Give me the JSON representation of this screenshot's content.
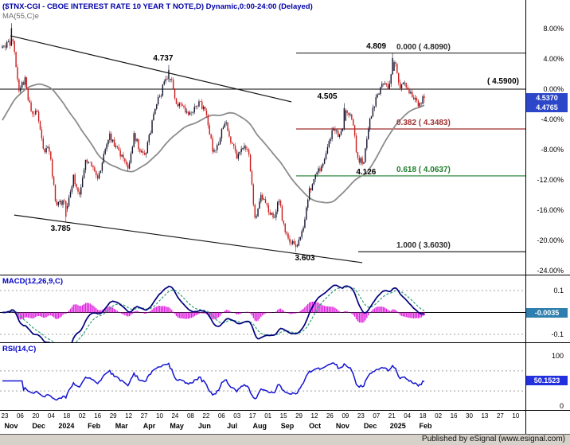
{
  "header": {
    "title": "($TNX-CGI - CBOE INTEREST RATE 10 YEAR T NOTE,D) Dynamic,0:00-24:00 (Delayed)",
    "overlay_label": "MA(55,C)e"
  },
  "panels": {
    "macd_label": "MACD(12,26,9,C)",
    "rsi_label": "RSI(14,C)"
  },
  "boxes": {
    "price": "4.5370",
    "ma": "4.4765",
    "macd": "-0.0035",
    "rsi": "50.1523",
    "price_color": "#2b46c8",
    "ma_color": "#2b46c8",
    "macd_color": "#2e7fae",
    "rsi_color": "#2330dd"
  },
  "level_line": {
    "label": "( 4.5900)",
    "price": 4.59
  },
  "fib": [
    {
      "ratio": "0.000",
      "price": 4.809,
      "label": "0.000 ( 4.8090)",
      "color": "#2a2a2a",
      "x_start": 372
    },
    {
      "ratio": "0.382",
      "price": 4.3483,
      "label": "0.382 ( 4.3483)",
      "color": "#9e2f2f",
      "x_start": 372
    },
    {
      "ratio": "0.618",
      "price": 4.0637,
      "label": "0.618 ( 4.0637)",
      "color": "#1e7d2c",
      "x_start": 372
    },
    {
      "ratio": "1.000",
      "price": 3.603,
      "label": "1.000 ( 3.6030)",
      "color": "#2a2a2a",
      "x_start": 450
    }
  ],
  "swing_labels": [
    {
      "text": "4.809",
      "xf": 0.886,
      "price": 4.809,
      "pos": "above"
    },
    {
      "text": "4.737",
      "xf": 0.381,
      "price": 4.737,
      "pos": "above"
    },
    {
      "text": "4.505",
      "xf": 0.77,
      "price": 4.505,
      "pos": "above"
    },
    {
      "text": "4.126",
      "xf": 0.862,
      "price": 4.126,
      "pos": "below"
    },
    {
      "text": "3.785",
      "xf": 0.138,
      "price": 3.785,
      "pos": "below"
    },
    {
      "text": "3.603",
      "xf": 0.717,
      "price": 3.603,
      "pos": "below"
    }
  ],
  "trendlines": [
    {
      "x1f": 0.019,
      "p1": 4.914,
      "x2f": 0.685,
      "p2": 4.513
    },
    {
      "x1f": 0.028,
      "p1": 3.826,
      "x2f": 0.853,
      "p2": 3.537
    }
  ],
  "footer": {
    "text": "Published by eSignal (www.esignal.com)"
  },
  "chart_data": [
    {
      "type": "line",
      "render": "candlestick",
      "name": "$TNX-CGI CBOE Interest Rate 10 Year T Note, Daily",
      "x_axis": {
        "start": "2023-10-23",
        "end": "2025-02-10",
        "interval": "weekly",
        "tick_labels": [
          "23",
          "06",
          "20",
          "04",
          "18",
          "02",
          "16",
          "29",
          "12",
          "27",
          "10",
          "24",
          "08",
          "22",
          "06",
          "03",
          "17",
          "01",
          "15",
          "29",
          "12",
          "26",
          "09",
          "23",
          "07",
          "21",
          "04",
          "18",
          "02",
          "16",
          "30",
          "13",
          "27",
          "10"
        ],
        "month_labels": [
          "Nov",
          "Dec",
          "2024",
          "Feb",
          "Mar",
          "Apr",
          "May",
          "Jun",
          "Jul",
          "Aug",
          "Sep",
          "Oct",
          "Nov",
          "Dec",
          "2025",
          "Feb"
        ]
      },
      "y_axis": {
        "mode": "percent-change",
        "baseline_price": 4.59,
        "tick_labels": [
          "8.00%",
          "4.00%",
          "0.00%",
          "-4.00%",
          "-8.00%",
          "-12.00%",
          "-16.00%",
          "-20.00%",
          "-24.00%"
        ],
        "ticks_percent": [
          8,
          4,
          0,
          -4,
          -8,
          -12,
          -16,
          -20,
          -24
        ]
      },
      "series": [
        {
          "name": "close_weekly",
          "values": [
            4.86,
            4.88,
            4.57,
            4.65,
            4.44,
            4.47,
            4.22,
            4.23,
            3.91,
            3.9,
            3.88,
            4.05,
            3.94,
            4.15,
            4.14,
            4.03,
            4.19,
            4.3,
            4.25,
            4.18,
            4.09,
            4.31,
            4.22,
            4.21,
            4.39,
            4.52,
            4.62,
            4.67,
            4.51,
            4.5,
            4.42,
            4.47,
            4.51,
            4.43,
            4.22,
            4.26,
            4.4,
            4.28,
            4.18,
            4.24,
            4.2,
            3.79,
            3.94,
            3.88,
            3.8,
            3.91,
            3.71,
            3.66,
            3.65,
            3.75,
            3.97,
            4.08,
            4.1,
            4.24,
            4.36,
            4.3,
            4.44,
            4.41,
            4.17,
            4.15,
            4.4,
            4.52,
            4.62,
            4.6,
            4.76,
            4.61,
            4.62,
            4.54,
            4.49,
            4.537
          ]
        }
      ],
      "marked_extremes": [
        {
          "week": 1,
          "high": 4.99
        },
        {
          "week": 10,
          "low": 3.785
        },
        {
          "week": 27,
          "high": 4.737
        },
        {
          "week": 48,
          "low": 3.603
        },
        {
          "week": 56,
          "high": 4.505
        },
        {
          "week": 59,
          "low": 4.126
        },
        {
          "week": 64,
          "high": 4.809
        }
      ],
      "overlays": [
        {
          "name": "MA(55,C)e",
          "window": 55,
          "color": "#8c8c8c",
          "last_value": 4.4765
        }
      ],
      "last_price": 4.537,
      "up_color": "#14142e",
      "down_color": "#cc1b1b"
    },
    {
      "type": "line",
      "name": "MACD(12,26,9,C)",
      "derived_from": "close",
      "params": {
        "fast": 12,
        "slow": 26,
        "signal": 9
      },
      "ylim": [
        -0.15,
        0.15
      ],
      "tick_values": [
        0.1,
        -0.1
      ],
      "tick_labels": [
        "0.1",
        "-0.1"
      ],
      "last": -0.0035,
      "colors": {
        "macd": "#00007d",
        "signal": "#2f9e77",
        "histogram": "#dd22dd"
      }
    },
    {
      "type": "line",
      "name": "RSI(14,C)",
      "derived_from": "close",
      "params": {
        "period": 14
      },
      "ylim": [
        0,
        100
      ],
      "tick_labels": [
        "100",
        "0"
      ],
      "ref_lines": [
        70,
        30
      ],
      "last": 50.1523,
      "color": "#1414d2"
    }
  ]
}
